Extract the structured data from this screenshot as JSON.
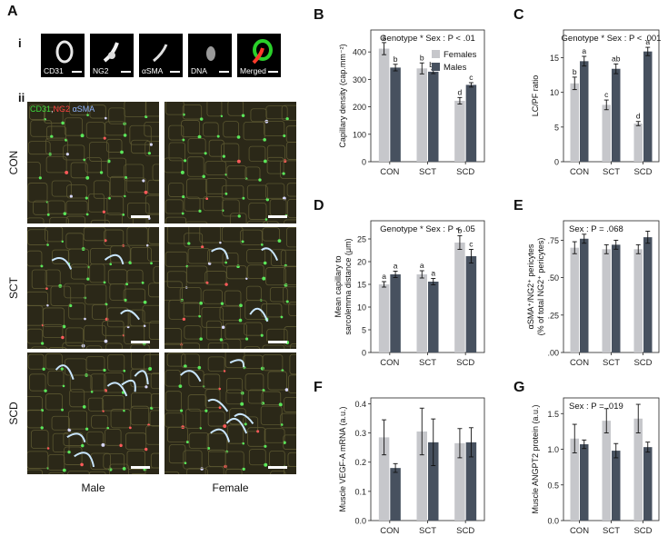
{
  "panel_a": {
    "letter": "A",
    "sub_i": "i",
    "sub_ii": "ii",
    "stains": [
      "CD31",
      "NG2",
      "αSMA",
      "DNA",
      "Merged"
    ],
    "legend": {
      "cd31": "CD31",
      "ng2": "NG2",
      "asma": "αSMA"
    },
    "rows": [
      "CON",
      "SCT",
      "SCD"
    ],
    "cols": [
      "Male",
      "Female"
    ]
  },
  "chart_data": [
    {
      "id": "B",
      "type": "bar",
      "annotation": "Genotype * Sex : P < .01",
      "ylabel": "Capillary density (cap.mm⁻²)",
      "categories": [
        "CON",
        "SCT",
        "SCD"
      ],
      "ylim": [
        0,
        480
      ],
      "yticks": [
        0,
        100,
        200,
        300,
        400
      ],
      "yticklabels": [
        "0",
        "100",
        "200",
        "300",
        "400"
      ],
      "series": [
        {
          "name": "Females",
          "values": [
            412,
            340,
            222
          ],
          "errors": [
            22,
            20,
            12
          ],
          "letters": [
            "a",
            "b",
            "d"
          ]
        },
        {
          "name": "Males",
          "values": [
            343,
            328,
            280
          ],
          "errors": [
            12,
            7,
            8
          ],
          "letters": [
            "b",
            "bc",
            "c"
          ]
        }
      ],
      "legend": [
        "Females",
        "Males"
      ],
      "colors": [
        "#c6c7cb",
        "#47515f"
      ]
    },
    {
      "id": "C",
      "type": "bar",
      "annotation": "Genotype * Sex : P < .001",
      "ylabel": "LC/PF ratio",
      "categories": [
        "CON",
        "SCT",
        "SCD"
      ],
      "ylim": [
        0,
        19
      ],
      "yticks": [
        0,
        5,
        10,
        15
      ],
      "yticklabels": [
        "0",
        "5",
        "10",
        "15"
      ],
      "series": [
        {
          "name": "Females",
          "values": [
            11.3,
            8.2,
            5.5
          ],
          "errors": [
            0.9,
            0.7,
            0.3
          ],
          "letters": [
            "b",
            "c",
            "d"
          ]
        },
        {
          "name": "Males",
          "values": [
            14.5,
            13.4,
            15.9
          ],
          "errors": [
            0.7,
            0.7,
            0.6
          ],
          "letters": [
            "a",
            "ab",
            "a"
          ]
        }
      ],
      "colors": [
        "#c6c7cb",
        "#47515f"
      ]
    },
    {
      "id": "D",
      "type": "bar",
      "annotation": "Genotype * Sex : P < .05",
      "ylabel": "Mean capillary to sarcolemma distance (μm)",
      "categories": [
        "CON",
        "SCT",
        "SCD"
      ],
      "ylim": [
        0,
        29
      ],
      "yticks": [
        0,
        5,
        10,
        15,
        20,
        25
      ],
      "yticklabels": [
        "0",
        "5",
        "10",
        "15",
        "20",
        "25"
      ],
      "series": [
        {
          "name": "Females",
          "values": [
            15.0,
            17.2,
            24.2
          ],
          "errors": [
            0.6,
            0.8,
            1.5
          ],
          "letters": [
            "a",
            "a",
            "b"
          ]
        },
        {
          "name": "Males",
          "values": [
            17.2,
            15.6,
            21.2
          ],
          "errors": [
            0.7,
            0.7,
            1.5
          ],
          "letters": [
            "a",
            "a",
            "c"
          ]
        }
      ],
      "colors": [
        "#c6c7cb",
        "#47515f"
      ]
    },
    {
      "id": "E",
      "type": "bar",
      "annotation": "Sex : P = .068",
      "ylabel": "αSMA⁺/NG2⁺ pericytes (% of total NG2⁺ pericytes)",
      "categories": [
        "CON",
        "SCT",
        "SCD"
      ],
      "ylim": [
        0,
        0.88
      ],
      "yticks": [
        0,
        0.25,
        0.5,
        0.75
      ],
      "yticklabels": [
        ".00",
        ".25",
        ".50",
        ".75"
      ],
      "series": [
        {
          "name": "Females",
          "values": [
            0.7,
            0.69,
            0.69
          ],
          "errors": [
            0.04,
            0.03,
            0.03
          ]
        },
        {
          "name": "Males",
          "values": [
            0.76,
            0.72,
            0.77
          ],
          "errors": [
            0.03,
            0.03,
            0.04
          ]
        }
      ],
      "colors": [
        "#c6c7cb",
        "#47515f"
      ]
    },
    {
      "id": "F",
      "type": "bar",
      "annotation": "",
      "ylabel": "Muscle VEGF-A mRNA (a.u.)",
      "categories": [
        "CON",
        "SCT",
        "SCD"
      ],
      "ylim": [
        0,
        0.42
      ],
      "yticks": [
        0,
        0.1,
        0.2,
        0.3,
        0.4
      ],
      "yticklabels": [
        "0.0",
        "0.1",
        "0.2",
        "0.3",
        "0.4"
      ],
      "series": [
        {
          "name": "Females",
          "values": [
            0.285,
            0.305,
            0.265
          ],
          "errors": [
            0.06,
            0.08,
            0.05
          ]
        },
        {
          "name": "Males",
          "values": [
            0.18,
            0.268,
            0.268
          ],
          "errors": [
            0.015,
            0.08,
            0.05
          ]
        }
      ],
      "colors": [
        "#c6c7cb",
        "#47515f"
      ]
    },
    {
      "id": "G",
      "type": "bar",
      "annotation": "Sex : P = .019",
      "ylabel": "Muscle ANGPT2 protein (a.u.)",
      "categories": [
        "CON",
        "SCT",
        "SCD"
      ],
      "ylim": [
        0,
        1.72
      ],
      "yticks": [
        0,
        0.5,
        1.0,
        1.5
      ],
      "yticklabels": [
        "0.0",
        "0.5",
        "1.0",
        "1.5"
      ],
      "series": [
        {
          "name": "Females",
          "values": [
            1.15,
            1.4,
            1.43
          ],
          "errors": [
            0.2,
            0.17,
            0.2
          ]
        },
        {
          "name": "Males",
          "values": [
            1.07,
            0.98,
            1.03
          ],
          "errors": [
            0.06,
            0.1,
            0.07
          ]
        }
      ],
      "colors": [
        "#c6c7cb",
        "#47515f"
      ]
    }
  ]
}
